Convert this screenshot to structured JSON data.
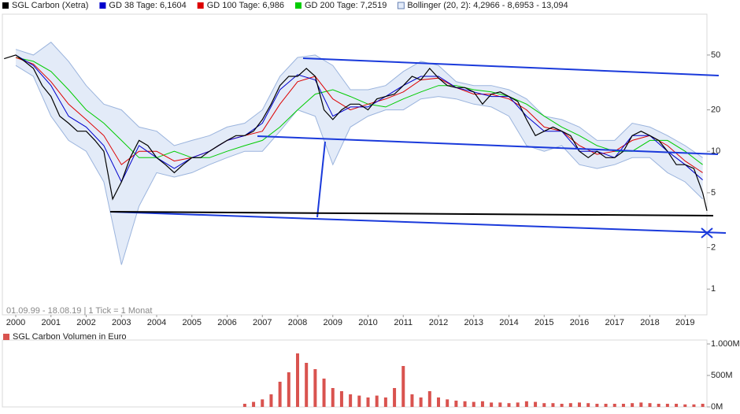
{
  "chart_data": [
    {
      "type": "line",
      "log_scale": true,
      "footnote": "01.09.99 - 18.08.19 | 1 Tick = 1 Monat",
      "xlim": [
        1999.62,
        2019.62
      ],
      "xticks": [
        2000,
        2001,
        2002,
        2003,
        2004,
        2005,
        2006,
        2007,
        2008,
        2009,
        2010,
        2011,
        2012,
        2013,
        2014,
        2015,
        2016,
        2017,
        2018,
        2019
      ],
      "ylim": [
        0.65,
        99
      ],
      "yticks": [
        1,
        2,
        5,
        10,
        20,
        50
      ],
      "bollinger": {
        "name": "Bollinger (20, 2): 4,2966 - 8,6953 - 13,094",
        "color": "#9bb4dd",
        "fill": "#e3ebf8",
        "x": [
          2000,
          2000.5,
          2001,
          2001.5,
          2002,
          2002.5,
          2003,
          2003.5,
          2004,
          2004.5,
          2005,
          2005.5,
          2006,
          2006.5,
          2007,
          2007.5,
          2008,
          2008.5,
          2009,
          2009.5,
          2010,
          2010.5,
          2011,
          2011.5,
          2012,
          2012.5,
          2013,
          2013.5,
          2014,
          2014.5,
          2015,
          2015.5,
          2016,
          2016.5,
          2017,
          2017.5,
          2018,
          2018.5,
          2019,
          2019.5
        ],
        "upper": [
          55,
          50,
          62,
          45,
          30,
          22,
          20,
          15,
          14,
          11,
          12,
          13,
          15,
          16,
          20,
          35,
          48,
          50,
          42,
          28,
          28,
          30,
          38,
          45,
          42,
          32,
          30,
          30,
          28,
          24,
          18,
          17,
          15,
          12,
          12,
          16,
          15,
          13,
          11,
          9
        ],
        "lower": [
          42,
          35,
          18,
          12,
          10,
          6,
          1.5,
          4,
          7,
          6.5,
          7,
          8,
          9,
          10,
          10,
          14,
          20,
          18,
          8,
          15,
          18,
          20,
          20,
          24,
          25,
          24,
          22,
          21,
          18,
          11,
          10,
          11,
          8,
          7.5,
          8,
          9,
          9,
          7,
          6,
          4.5
        ]
      },
      "series": [
        {
          "name": "SGL Carbon (Xetra)",
          "color": "#000000",
          "x": [
            1999.67,
            2000,
            2000.25,
            2000.5,
            2000.75,
            2001,
            2001.25,
            2001.5,
            2001.75,
            2002,
            2002.25,
            2002.5,
            2002.75,
            2003,
            2003.25,
            2003.5,
            2003.75,
            2004,
            2004.25,
            2004.5,
            2004.75,
            2005,
            2005.25,
            2005.5,
            2005.75,
            2006,
            2006.25,
            2006.5,
            2006.75,
            2007,
            2007.25,
            2007.5,
            2007.75,
            2008,
            2008.25,
            2008.5,
            2008.75,
            2009,
            2009.25,
            2009.5,
            2009.75,
            2010,
            2010.25,
            2010.5,
            2010.75,
            2011,
            2011.25,
            2011.5,
            2011.75,
            2012,
            2012.25,
            2012.5,
            2012.75,
            2013,
            2013.25,
            2013.5,
            2013.75,
            2014,
            2014.25,
            2014.5,
            2014.75,
            2015,
            2015.25,
            2015.5,
            2015.75,
            2016,
            2016.25,
            2016.5,
            2016.75,
            2017,
            2017.25,
            2017.5,
            2017.75,
            2018,
            2018.25,
            2018.5,
            2018.75,
            2019,
            2019.25,
            2019.5,
            2019.62
          ],
          "values": [
            47,
            50,
            45,
            40,
            30,
            25,
            18,
            16,
            14,
            14,
            12,
            10,
            4.5,
            6,
            9,
            12,
            11,
            9,
            8,
            7,
            8,
            9,
            9,
            10,
            11,
            12,
            13,
            13,
            14,
            17,
            22,
            30,
            35,
            35,
            40,
            35,
            20,
            17,
            20,
            22,
            22,
            20,
            24,
            25,
            26,
            30,
            35,
            33,
            40,
            34,
            30,
            29,
            29,
            27,
            22,
            26,
            27,
            25,
            23,
            17,
            13,
            14,
            15,
            14,
            13,
            10,
            9,
            10,
            9,
            9,
            10,
            13,
            14,
            13,
            12,
            10,
            8,
            8,
            7.5,
            5,
            3.7
          ]
        },
        {
          "name": "GD 38 Tage: 6,1604",
          "color": "#0000cc",
          "x": [
            2000,
            2000.5,
            2001,
            2001.5,
            2002,
            2002.5,
            2003,
            2003.5,
            2004,
            2004.5,
            2005,
            2005.5,
            2006,
            2006.5,
            2007,
            2007.5,
            2008,
            2008.5,
            2009,
            2009.5,
            2010,
            2010.5,
            2011,
            2011.5,
            2012,
            2012.5,
            2013,
            2013.5,
            2014,
            2014.5,
            2015,
            2015.5,
            2016,
            2016.5,
            2017,
            2017.5,
            2018,
            2018.5,
            2019,
            2019.5
          ],
          "values": [
            50,
            42,
            30,
            18,
            15,
            11,
            6,
            11,
            9,
            7.5,
            9,
            10,
            12,
            13,
            16,
            28,
            36,
            33,
            18,
            21,
            21,
            25,
            30,
            35,
            35,
            29,
            27,
            25,
            25,
            18,
            14,
            14,
            10,
            10,
            9,
            13,
            13,
            10,
            8,
            6.2
          ]
        },
        {
          "name": "GD 100 Tage: 6,986",
          "color": "#dd0000",
          "x": [
            2000,
            2000.5,
            2001,
            2001.5,
            2002,
            2002.5,
            2003,
            2003.5,
            2004,
            2004.5,
            2005,
            2005.5,
            2006,
            2006.5,
            2007,
            2007.5,
            2008,
            2008.5,
            2009,
            2009.5,
            2010,
            2010.5,
            2011,
            2011.5,
            2012,
            2012.5,
            2013,
            2013.5,
            2014,
            2014.5,
            2015,
            2015.5,
            2016,
            2016.5,
            2017,
            2017.5,
            2018,
            2018.5,
            2019,
            2019.5
          ],
          "values": [
            48,
            43,
            32,
            22,
            17,
            13,
            8,
            10,
            10,
            8.5,
            9,
            10,
            12,
            13,
            14,
            22,
            32,
            35,
            24,
            20,
            22,
            24,
            27,
            33,
            34,
            29,
            26,
            26,
            24,
            20,
            15,
            14,
            11,
            9.5,
            10,
            12,
            13,
            11,
            8.5,
            7
          ]
        },
        {
          "name": "GD 200 Tage: 7,2519",
          "color": "#00cc00",
          "x": [
            2000,
            2000.5,
            2001,
            2001.5,
            2002,
            2002.5,
            2003,
            2003.5,
            2004,
            2004.5,
            2005,
            2005.5,
            2006,
            2006.5,
            2007,
            2007.5,
            2008,
            2008.5,
            2009,
            2009.5,
            2010,
            2010.5,
            2011,
            2011.5,
            2012,
            2012.5,
            2013,
            2013.5,
            2014,
            2014.5,
            2015,
            2015.5,
            2016,
            2016.5,
            2017,
            2017.5,
            2018,
            2018.5,
            2019,
            2019.5
          ],
          "values": [
            48,
            45,
            38,
            28,
            20,
            16,
            12,
            9,
            9,
            10,
            9,
            9,
            10,
            11,
            12,
            15,
            20,
            26,
            28,
            25,
            22,
            21,
            24,
            27,
            30,
            30,
            28,
            27,
            25,
            22,
            18,
            15,
            13,
            11,
            10,
            10,
            12,
            12,
            10,
            8
          ]
        }
      ]
    },
    {
      "type": "bar",
      "title": "SGL Carbon Volumen in Euro",
      "color": "#d9534f",
      "xlim": [
        1999.62,
        2019.62
      ],
      "ylim": [
        0,
        1000
      ],
      "yticks": [
        {
          "value": 0,
          "label": "0M"
        },
        {
          "value": 500,
          "label": "500M"
        },
        {
          "value": 1000,
          "label": "1.000M"
        }
      ],
      "x": [
        2006.5,
        2006.75,
        2007,
        2007.25,
        2007.5,
        2007.75,
        2008,
        2008.25,
        2008.5,
        2008.75,
        2009,
        2009.25,
        2009.5,
        2009.75,
        2010,
        2010.25,
        2010.5,
        2010.75,
        2011,
        2011.25,
        2011.5,
        2011.75,
        2012,
        2012.25,
        2012.5,
        2012.75,
        2013,
        2013.25,
        2013.5,
        2013.75,
        2014,
        2014.25,
        2014.5,
        2014.75,
        2015,
        2015.25,
        2015.5,
        2015.75,
        2016,
        2016.25,
        2016.5,
        2016.75,
        2017,
        2017.25,
        2017.5,
        2017.75,
        2018,
        2018.25,
        2018.5,
        2018.75,
        2019,
        2019.25,
        2019.5
      ],
      "values": [
        50,
        80,
        120,
        200,
        400,
        550,
        850,
        700,
        600,
        450,
        300,
        250,
        200,
        180,
        150,
        180,
        150,
        300,
        650,
        200,
        150,
        250,
        150,
        120,
        100,
        90,
        80,
        90,
        70,
        70,
        60,
        70,
        90,
        80,
        60,
        60,
        50,
        60,
        70,
        60,
        50,
        50,
        50,
        50,
        60,
        70,
        60,
        50,
        50,
        50,
        40,
        40,
        50
      ]
    }
  ]
}
